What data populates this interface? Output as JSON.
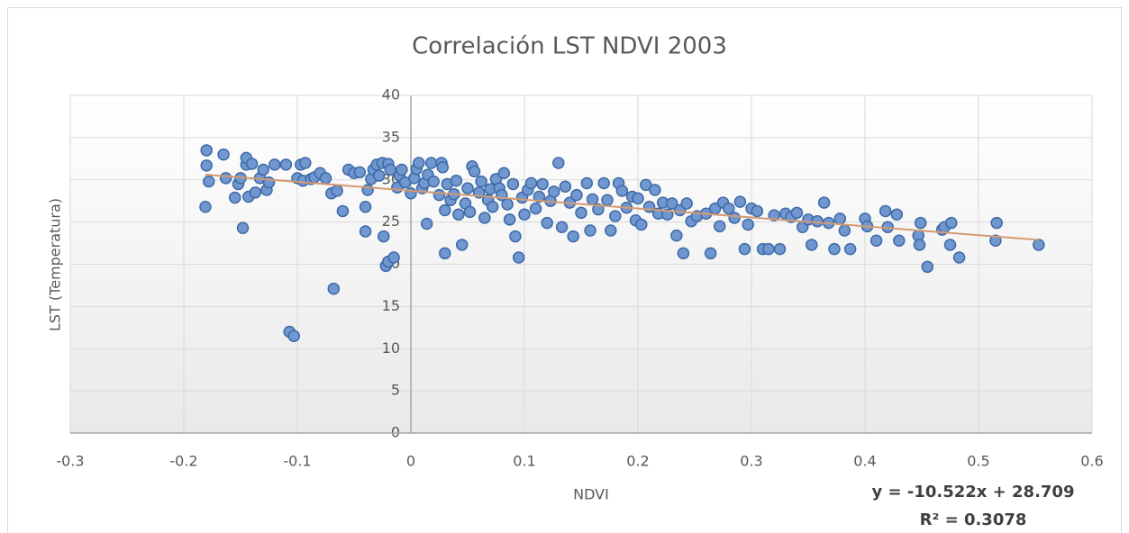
{
  "chart_data": {
    "type": "scatter",
    "title": "Correlación LST NDVI 2003",
    "xlabel": "NDVI",
    "ylabel": "LST (Temperatura)",
    "xlim": [
      -0.3,
      0.6
    ],
    "xticks": [
      -0.3,
      -0.2,
      -0.1,
      0,
      0.1,
      0.2,
      0.3,
      0.4,
      0.5,
      0.6
    ],
    "ylim": [
      0,
      40
    ],
    "yticks": [
      0,
      5,
      10,
      15,
      20,
      25,
      30,
      35,
      40
    ],
    "grid": true,
    "color": "#7097d0",
    "edge_color": "#3e6aa6",
    "x": [
      -0.18,
      -0.18,
      -0.178,
      -0.181,
      -0.165,
      -0.163,
      -0.155,
      -0.152,
      -0.15,
      -0.148,
      -0.145,
      -0.145,
      -0.143,
      -0.14,
      -0.137,
      -0.133,
      -0.13,
      -0.127,
      -0.125,
      -0.12,
      -0.11,
      -0.107,
      -0.103,
      -0.1,
      -0.097,
      -0.095,
      -0.093,
      -0.088,
      -0.085,
      -0.08,
      -0.075,
      -0.07,
      -0.068,
      -0.065,
      -0.06,
      -0.055,
      -0.05,
      -0.045,
      -0.04,
      -0.04,
      -0.038,
      -0.035,
      -0.033,
      -0.03,
      -0.028,
      -0.025,
      -0.024,
      -0.022,
      -0.02,
      -0.02,
      -0.018,
      -0.015,
      -0.012,
      -0.01,
      -0.008,
      -0.005,
      0,
      0.003,
      0.005,
      0.007,
      0.01,
      0.012,
      0.014,
      0.015,
      0.018,
      0.02,
      0.025,
      0.027,
      0.028,
      0.03,
      0.03,
      0.032,
      0.035,
      0.038,
      0.04,
      0.042,
      0.045,
      0.048,
      0.05,
      0.052,
      0.054,
      0.056,
      0.06,
      0.062,
      0.065,
      0.068,
      0.07,
      0.072,
      0.075,
      0.078,
      0.08,
      0.082,
      0.085,
      0.087,
      0.09,
      0.092,
      0.095,
      0.098,
      0.1,
      0.103,
      0.106,
      0.11,
      0.113,
      0.116,
      0.12,
      0.123,
      0.126,
      0.13,
      0.133,
      0.136,
      0.14,
      0.143,
      0.146,
      0.15,
      0.155,
      0.158,
      0.16,
      0.165,
      0.17,
      0.173,
      0.176,
      0.18,
      0.183,
      0.186,
      0.19,
      0.195,
      0.198,
      0.2,
      0.203,
      0.207,
      0.21,
      0.215,
      0.218,
      0.222,
      0.226,
      0.23,
      0.234,
      0.237,
      0.24,
      0.243,
      0.247,
      0.252,
      0.26,
      0.264,
      0.268,
      0.272,
      0.275,
      0.28,
      0.285,
      0.29,
      0.294,
      0.297,
      0.3,
      0.305,
      0.31,
      0.315,
      0.32,
      0.325,
      0.33,
      0.335,
      0.34,
      0.345,
      0.35,
      0.353,
      0.358,
      0.364,
      0.368,
      0.373,
      0.378,
      0.382,
      0.387,
      0.4,
      0.402,
      0.41,
      0.418,
      0.42,
      0.428,
      0.43,
      0.447,
      0.448,
      0.449,
      0.455,
      0.468,
      0.47,
      0.475,
      0.476,
      0.483,
      0.515,
      0.516,
      0.553
    ],
    "values": [
      33.5,
      31.7,
      29.8,
      26.8,
      33,
      30.2,
      27.9,
      29.5,
      30.2,
      24.3,
      31.8,
      32.6,
      28,
      31.9,
      28.5,
      30.2,
      31.2,
      28.8,
      29.7,
      31.8,
      31.8,
      12,
      11.5,
      30.2,
      31.8,
      29.9,
      32,
      30.1,
      30.3,
      30.8,
      30.2,
      28.4,
      17.1,
      28.7,
      26.3,
      31.2,
      30.8,
      30.9,
      23.9,
      26.8,
      28.8,
      30.1,
      31.2,
      31.8,
      30.5,
      32,
      23.3,
      19.8,
      20.3,
      31.9,
      31.2,
      20.8,
      29.1,
      30.5,
      31.2,
      29.7,
      28.4,
      30.2,
      31.3,
      32,
      29,
      29.6,
      24.8,
      30.6,
      32,
      29.8,
      28.2,
      32,
      31.5,
      21.3,
      26.4,
      29.5,
      27.6,
      28.3,
      29.9,
      25.9,
      22.3,
      27.2,
      29,
      26.2,
      31.6,
      31,
      28.5,
      29.8,
      25.5,
      27.6,
      28.9,
      26.8,
      30.1,
      29,
      28.2,
      30.8,
      27.1,
      25.3,
      29.5,
      23.3,
      20.8,
      27.9,
      25.9,
      28.8,
      29.6,
      26.6,
      28,
      29.5,
      24.9,
      27.5,
      28.6,
      32,
      24.4,
      29.2,
      27.3,
      23.3,
      28.2,
      26.1,
      29.6,
      24,
      27.7,
      26.5,
      29.6,
      27.6,
      24,
      25.7,
      29.6,
      28.7,
      26.7,
      28,
      25.2,
      27.8,
      24.7,
      29.4,
      26.8,
      28.8,
      26,
      27.3,
      25.9,
      27.2,
      23.4,
      26.4,
      21.3,
      27.2,
      25.1,
      25.7,
      26,
      21.3,
      26.6,
      24.5,
      27.3,
      26.6,
      25.5,
      27.4,
      21.8,
      24.7,
      26.6,
      26.3,
      21.8,
      21.8,
      25.8,
      21.8,
      26,
      25.6,
      26.1,
      24.4,
      25.3,
      22.3,
      25.1,
      27.3,
      24.9,
      21.8,
      25.4,
      24,
      21.8,
      25.4,
      24.5,
      22.8,
      26.3,
      24.4,
      25.9,
      22.8,
      23.4,
      22.3,
      24.9,
      19.7,
      24.1,
      24.4,
      22.3,
      24.9,
      20.8,
      22.8,
      24.9,
      22.3
    ],
    "trendline": {
      "slope": -10.522,
      "intercept": 28.709,
      "color": "#d39a72"
    },
    "equation": "y = -10.522x + 28.709",
    "r_squared": "R² = 0.3078"
  }
}
